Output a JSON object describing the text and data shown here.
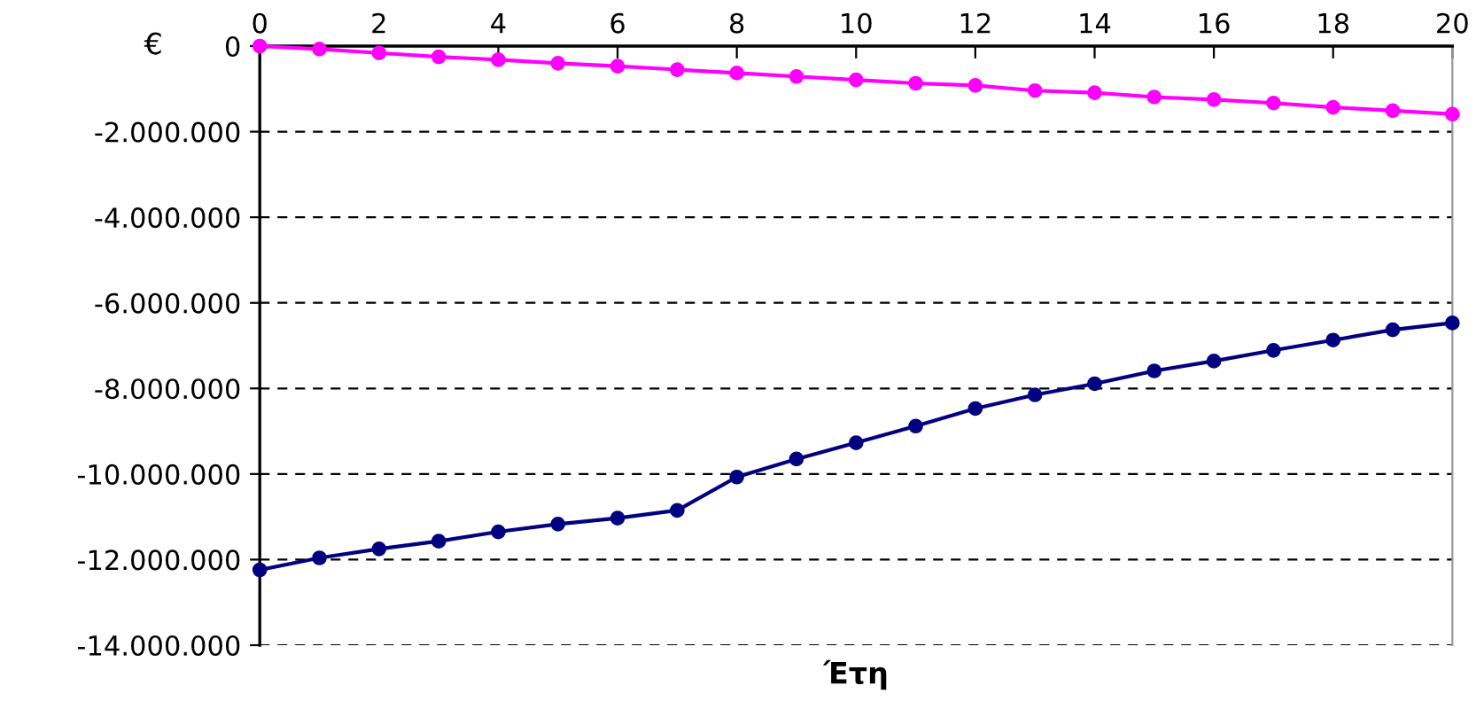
{
  "chart_data": {
    "type": "line",
    "xlabel": "Έτη",
    "ylabel": "€",
    "x": [
      0,
      1,
      2,
      3,
      4,
      5,
      6,
      7,
      8,
      9,
      10,
      11,
      12,
      13,
      14,
      15,
      16,
      17,
      18,
      19,
      20
    ],
    "series": [
      {
        "color": "#000080",
        "values": [
          -12240000,
          -11960000,
          -11750000,
          -11570000,
          -11350000,
          -11170000,
          -11030000,
          -10850000,
          -10070000,
          -9650000,
          -9270000,
          -8880000,
          -8470000,
          -8150000,
          -7890000,
          -7590000,
          -7360000,
          -7110000,
          -6870000,
          -6630000,
          -6470000
        ]
      },
      {
        "color": "#ff00ff",
        "values": [
          0,
          -70000,
          -160000,
          -250000,
          -320000,
          -400000,
          -470000,
          -550000,
          -630000,
          -710000,
          -790000,
          -870000,
          -920000,
          -1040000,
          -1090000,
          -1190000,
          -1250000,
          -1330000,
          -1430000,
          -1510000,
          -1590000
        ]
      }
    ],
    "xlim": [
      0,
      20
    ],
    "xticks": [
      0,
      2,
      4,
      6,
      8,
      10,
      12,
      14,
      16,
      18,
      20
    ],
    "ylim": [
      -14000000,
      0
    ],
    "yticks": [
      {
        "value": -14000000,
        "label": "-14.000.000"
      },
      {
        "value": -12000000,
        "label": "-12.000.000"
      },
      {
        "value": -10000000,
        "label": "-10.000.000"
      },
      {
        "value": -8000000,
        "label": "-8.000.000"
      },
      {
        "value": -6000000,
        "label": "-6.000.000"
      },
      {
        "value": -4000000,
        "label": "-4.000.000"
      },
      {
        "value": -2000000,
        "label": "-2.000.000"
      },
      {
        "value": 0,
        "label": "0"
      }
    ],
    "grid": "y",
    "marker": "circle",
    "line_style": "solid"
  }
}
